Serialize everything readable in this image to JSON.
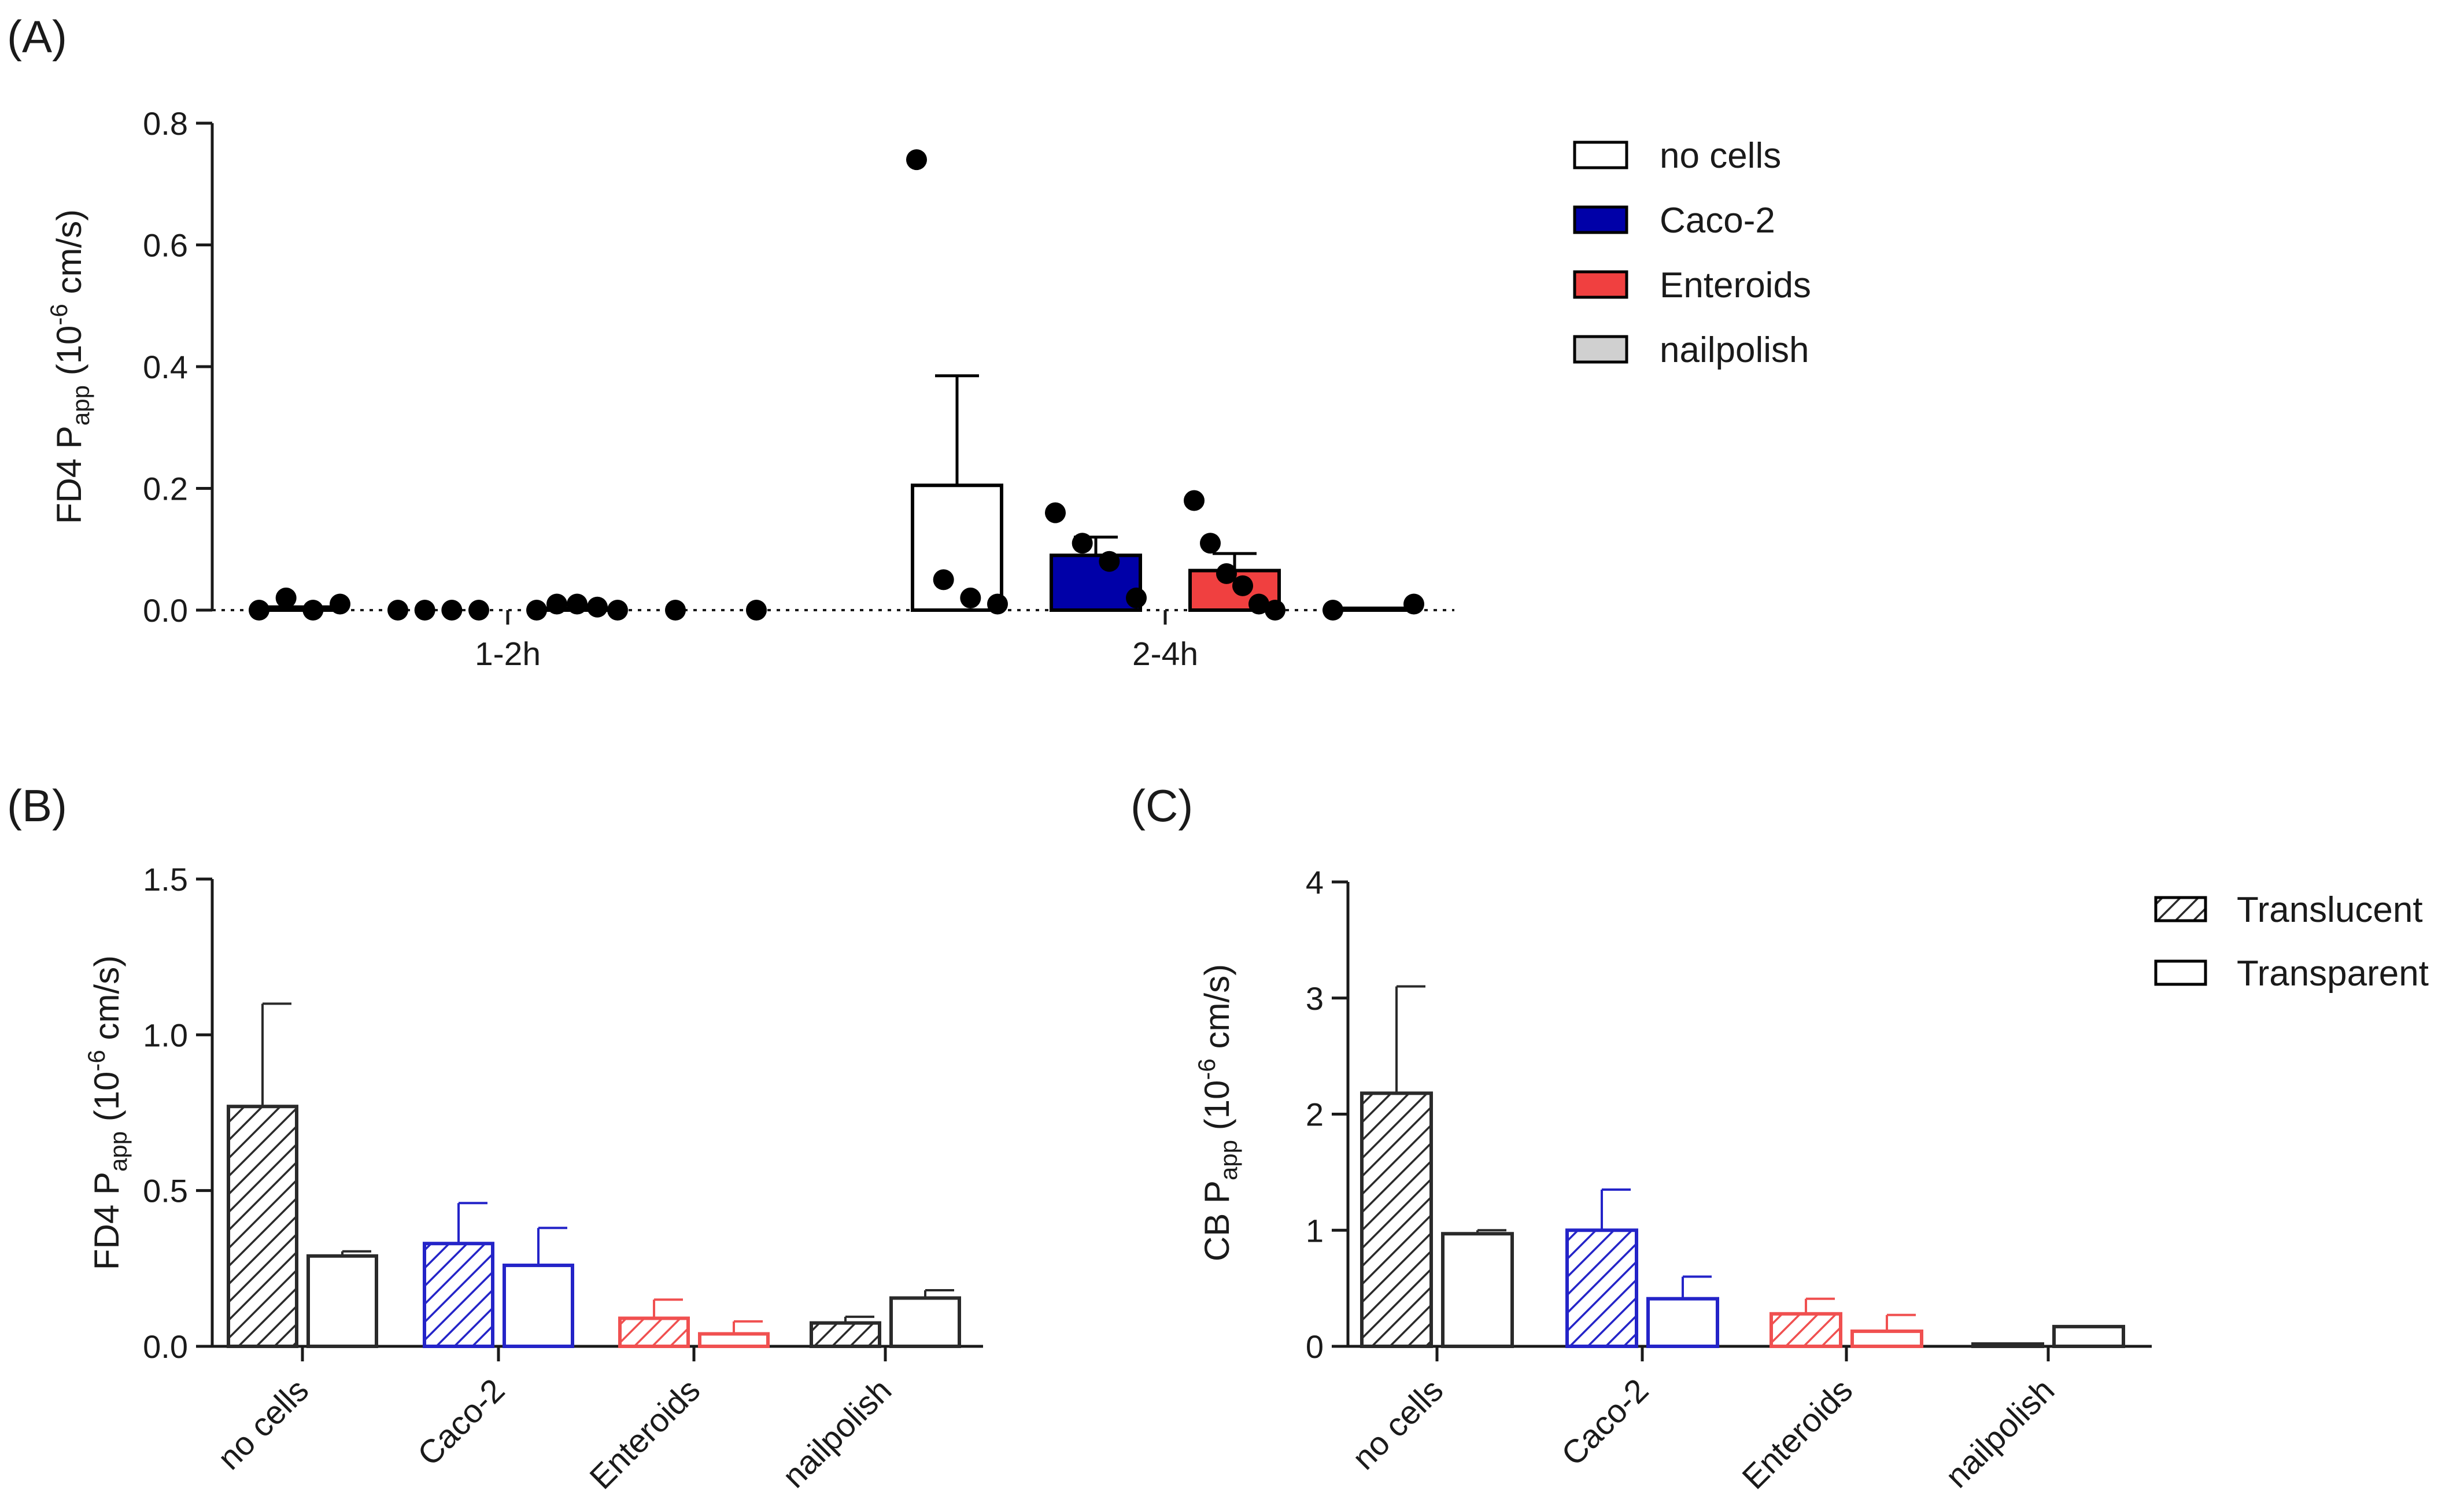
{
  "chart_data": [
    {
      "panel": "(A)",
      "type": "bar",
      "categories": [
        "1-2h",
        "2-4h"
      ],
      "ylabel": {
        "main": "FD4 P",
        "sub": "app",
        "units_pre": " (10",
        "units_exp": "-6",
        "units_post": " cm/s)"
      },
      "ylim": [
        0,
        0.8
      ],
      "yticks": [
        "0.0",
        "0.2",
        "0.4",
        "0.6",
        "0.8"
      ],
      "series": [
        {
          "name": "no cells",
          "color": "#ffffff",
          "stroke": "#000000",
          "means": [
            0.005,
            0.205
          ],
          "sem": [
            0.0,
            0.18
          ],
          "points": [
            [
              0.0,
              0.02,
              0.0,
              0.01
            ],
            [
              0.74,
              0.05,
              0.02,
              0.01
            ]
          ]
        },
        {
          "name": "Caco-2",
          "color": "#0000a8",
          "stroke": "#000000",
          "means": [
            0.0,
            0.09
          ],
          "sem": [
            0.0,
            0.03
          ],
          "points": [
            [
              0.0,
              0.0,
              0.0,
              0.0
            ],
            [
              0.16,
              0.11,
              0.08,
              0.02
            ]
          ]
        },
        {
          "name": "Enteroids",
          "color": "#f04040",
          "stroke": "#000000",
          "means": [
            0.003,
            0.065
          ],
          "sem": [
            0.0,
            0.028
          ],
          "points": [
            [
              0.0,
              0.01,
              0.01,
              0.005,
              0.0
            ],
            [
              0.18,
              0.11,
              0.06,
              0.04,
              0.01,
              0.0
            ]
          ]
        },
        {
          "name": "nailpolish",
          "color": "#d0d0d0",
          "stroke": "#000000",
          "means": [
            0.0,
            0.003
          ],
          "sem": [
            0.0,
            0.0
          ],
          "points": [
            [
              0.0,
              0.0
            ],
            [
              0.0,
              0.01
            ]
          ]
        }
      ],
      "legend": [
        "no cells",
        "Caco-2",
        "Enteroids",
        "nailpolish"
      ]
    },
    {
      "panel": "(B)",
      "type": "bar",
      "categories": [
        "no cells",
        "Caco-2",
        "Enteroids",
        "nailpolish"
      ],
      "category_colors": [
        "#2a2a2a",
        "#2424c8",
        "#f05050",
        "#2a2a2a"
      ],
      "ylabel": {
        "main": "FD4 P",
        "sub": "app",
        "units_pre": " (10",
        "units_exp": "-6",
        "units_post": " cm/s)"
      },
      "ylim": [
        0,
        1.5
      ],
      "yticks": [
        "0.0",
        "0.5",
        "1.0",
        "1.5"
      ],
      "series": [
        {
          "name": "Translucent",
          "values": [
            0.77,
            0.33,
            0.09,
            0.075
          ],
          "sem": [
            0.33,
            0.13,
            0.06,
            0.02
          ]
        },
        {
          "name": "Transparent",
          "values": [
            0.29,
            0.26,
            0.04,
            0.155
          ],
          "sem": [
            0.015,
            0.12,
            0.04,
            0.025
          ]
        }
      ]
    },
    {
      "panel": "(C)",
      "type": "bar",
      "categories": [
        "no cells",
        "Caco-2",
        "Enteroids",
        "nailpolish"
      ],
      "category_colors": [
        "#2a2a2a",
        "#2424c8",
        "#f05050",
        "#2a2a2a"
      ],
      "ylabel": {
        "main": "CB P",
        "sub": "app",
        "units_pre": " (10",
        "units_exp": "-6",
        "units_post": " cm/s)"
      },
      "ylim": [
        0,
        4
      ],
      "yticks": [
        "0",
        "1",
        "2",
        "3",
        "4"
      ],
      "series": [
        {
          "name": "Translucent",
          "values": [
            2.18,
            1.0,
            0.28,
            0.02
          ],
          "sem": [
            0.92,
            0.35,
            0.13,
            0.0
          ]
        },
        {
          "name": "Transparent",
          "values": [
            0.97,
            0.41,
            0.13,
            0.17
          ],
          "sem": [
            0.03,
            0.19,
            0.14,
            0.0
          ]
        }
      ],
      "legend": [
        "Translucent",
        "Transparent"
      ]
    }
  ]
}
